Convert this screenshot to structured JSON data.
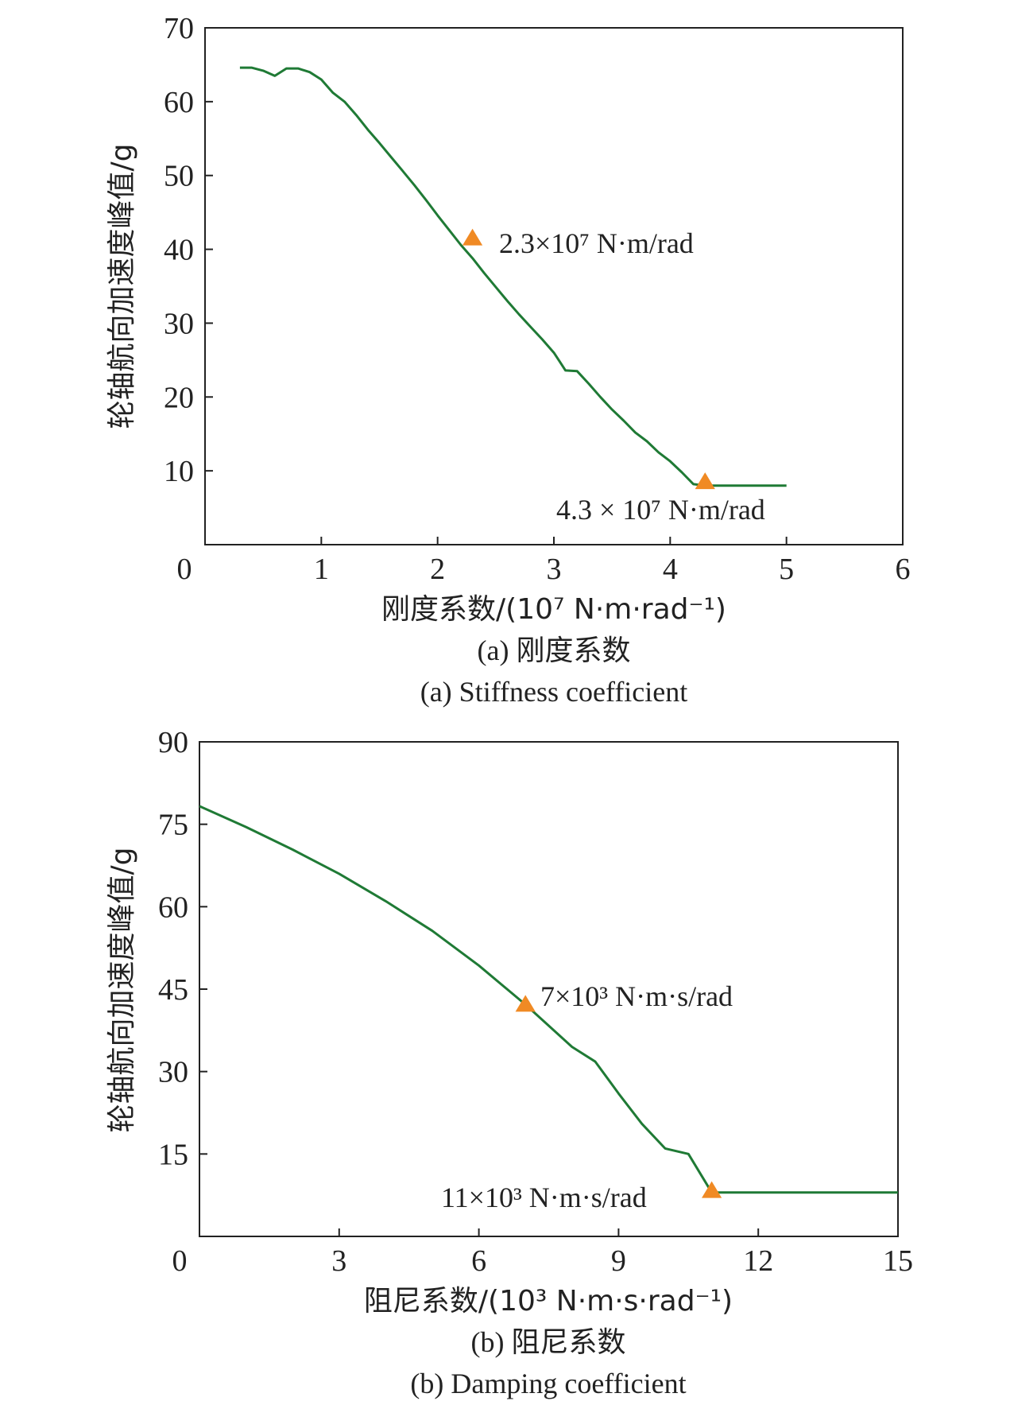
{
  "chart_data": [
    {
      "type": "line",
      "caption_cn": "(a) 刚度系数",
      "caption_en": "(a) Stiffness coefficient",
      "xlabel": "刚度系数/(10⁷ N·m·rad⁻¹)",
      "ylabel": "轮轴航向加速度峰值/g",
      "xlim": [
        0,
        6
      ],
      "ylim": [
        0,
        70
      ],
      "xticks": [
        "0",
        "1",
        "2",
        "3",
        "4",
        "5",
        "6"
      ],
      "yticks": [
        "10",
        "20",
        "30",
        "40",
        "50",
        "60",
        "70"
      ],
      "xtick_values": [
        0,
        1,
        2,
        3,
        4,
        5,
        6
      ],
      "ytick_values": [
        10,
        20,
        30,
        40,
        50,
        60,
        70
      ],
      "grid": false,
      "line_color": "#1f7a35",
      "marker_color": "#f08a24",
      "series": [
        {
          "x": [
            0.3,
            0.4,
            0.5,
            0.6,
            0.7,
            0.8,
            0.9,
            1.0,
            1.1,
            1.2,
            1.3,
            1.4,
            1.5,
            1.6,
            1.7,
            1.8,
            1.9,
            2.0,
            2.1,
            2.2,
            2.3,
            2.4,
            2.5,
            2.6,
            2.7,
            2.8,
            2.9,
            3.0,
            3.05,
            3.1,
            3.2,
            3.3,
            3.4,
            3.5,
            3.6,
            3.7,
            3.8,
            3.9,
            4.0,
            4.1,
            4.2,
            4.3,
            4.4,
            4.5,
            4.6,
            4.7,
            4.8,
            4.9,
            5.0
          ],
          "y": [
            64.6,
            64.6,
            64.2,
            63.5,
            64.5,
            64.5,
            64.0,
            63.0,
            61.2,
            60.0,
            58.2,
            56.2,
            54.4,
            52.5,
            50.6,
            48.7,
            46.7,
            44.6,
            42.6,
            40.6,
            38.8,
            36.8,
            34.9,
            33.0,
            31.2,
            29.5,
            27.8,
            26.0,
            24.8,
            23.6,
            23.5,
            21.8,
            20.0,
            18.3,
            16.8,
            15.2,
            14.0,
            12.5,
            11.3,
            9.8,
            8.2,
            8.0,
            8.0,
            8.0,
            8.0,
            8.0,
            8.0,
            8.0,
            8.0
          ]
        }
      ],
      "markers": [
        {
          "x": 2.3,
          "y": 41.5,
          "label": "2.3×10⁷ N·m/rad"
        },
        {
          "x": 4.3,
          "y": 8.5,
          "label": "4.3 × 10⁷ N·m/rad"
        }
      ]
    },
    {
      "type": "line",
      "caption_cn": "(b) 阻尼系数",
      "caption_en": "(b) Damping coefficient",
      "xlabel": "阻尼系数/(10³ N·m·s·rad⁻¹)",
      "ylabel": "轮轴航向加速度峰值/g",
      "xlim": [
        0,
        15
      ],
      "ylim": [
        0,
        90
      ],
      "xticks": [
        "0",
        "3",
        "6",
        "9",
        "12",
        "15"
      ],
      "yticks": [
        "15",
        "30",
        "45",
        "60",
        "75",
        "90"
      ],
      "xtick_values": [
        0,
        3,
        6,
        9,
        12,
        15
      ],
      "ytick_values": [
        15,
        30,
        45,
        60,
        75,
        90
      ],
      "grid": false,
      "line_color": "#1f7a35",
      "marker_color": "#f08a24",
      "series": [
        {
          "x": [
            0,
            1,
            2,
            3,
            4,
            5,
            6,
            7,
            8,
            8.5,
            9,
            9.5,
            10,
            10.5,
            11,
            12,
            13,
            14,
            15
          ],
          "y": [
            78.3,
            74.5,
            70.4,
            66.0,
            61.0,
            55.6,
            49.3,
            42.2,
            34.5,
            31.8,
            26.0,
            20.5,
            16.0,
            15.0,
            8.0,
            8.0,
            8.0,
            8.0,
            8.0
          ]
        }
      ],
      "markers": [
        {
          "x": 7,
          "y": 42.2,
          "label": "7×10³ N·m·s/rad"
        },
        {
          "x": 11,
          "y": 8.3,
          "label": "11×10³ N·m·s/rad"
        }
      ]
    }
  ]
}
